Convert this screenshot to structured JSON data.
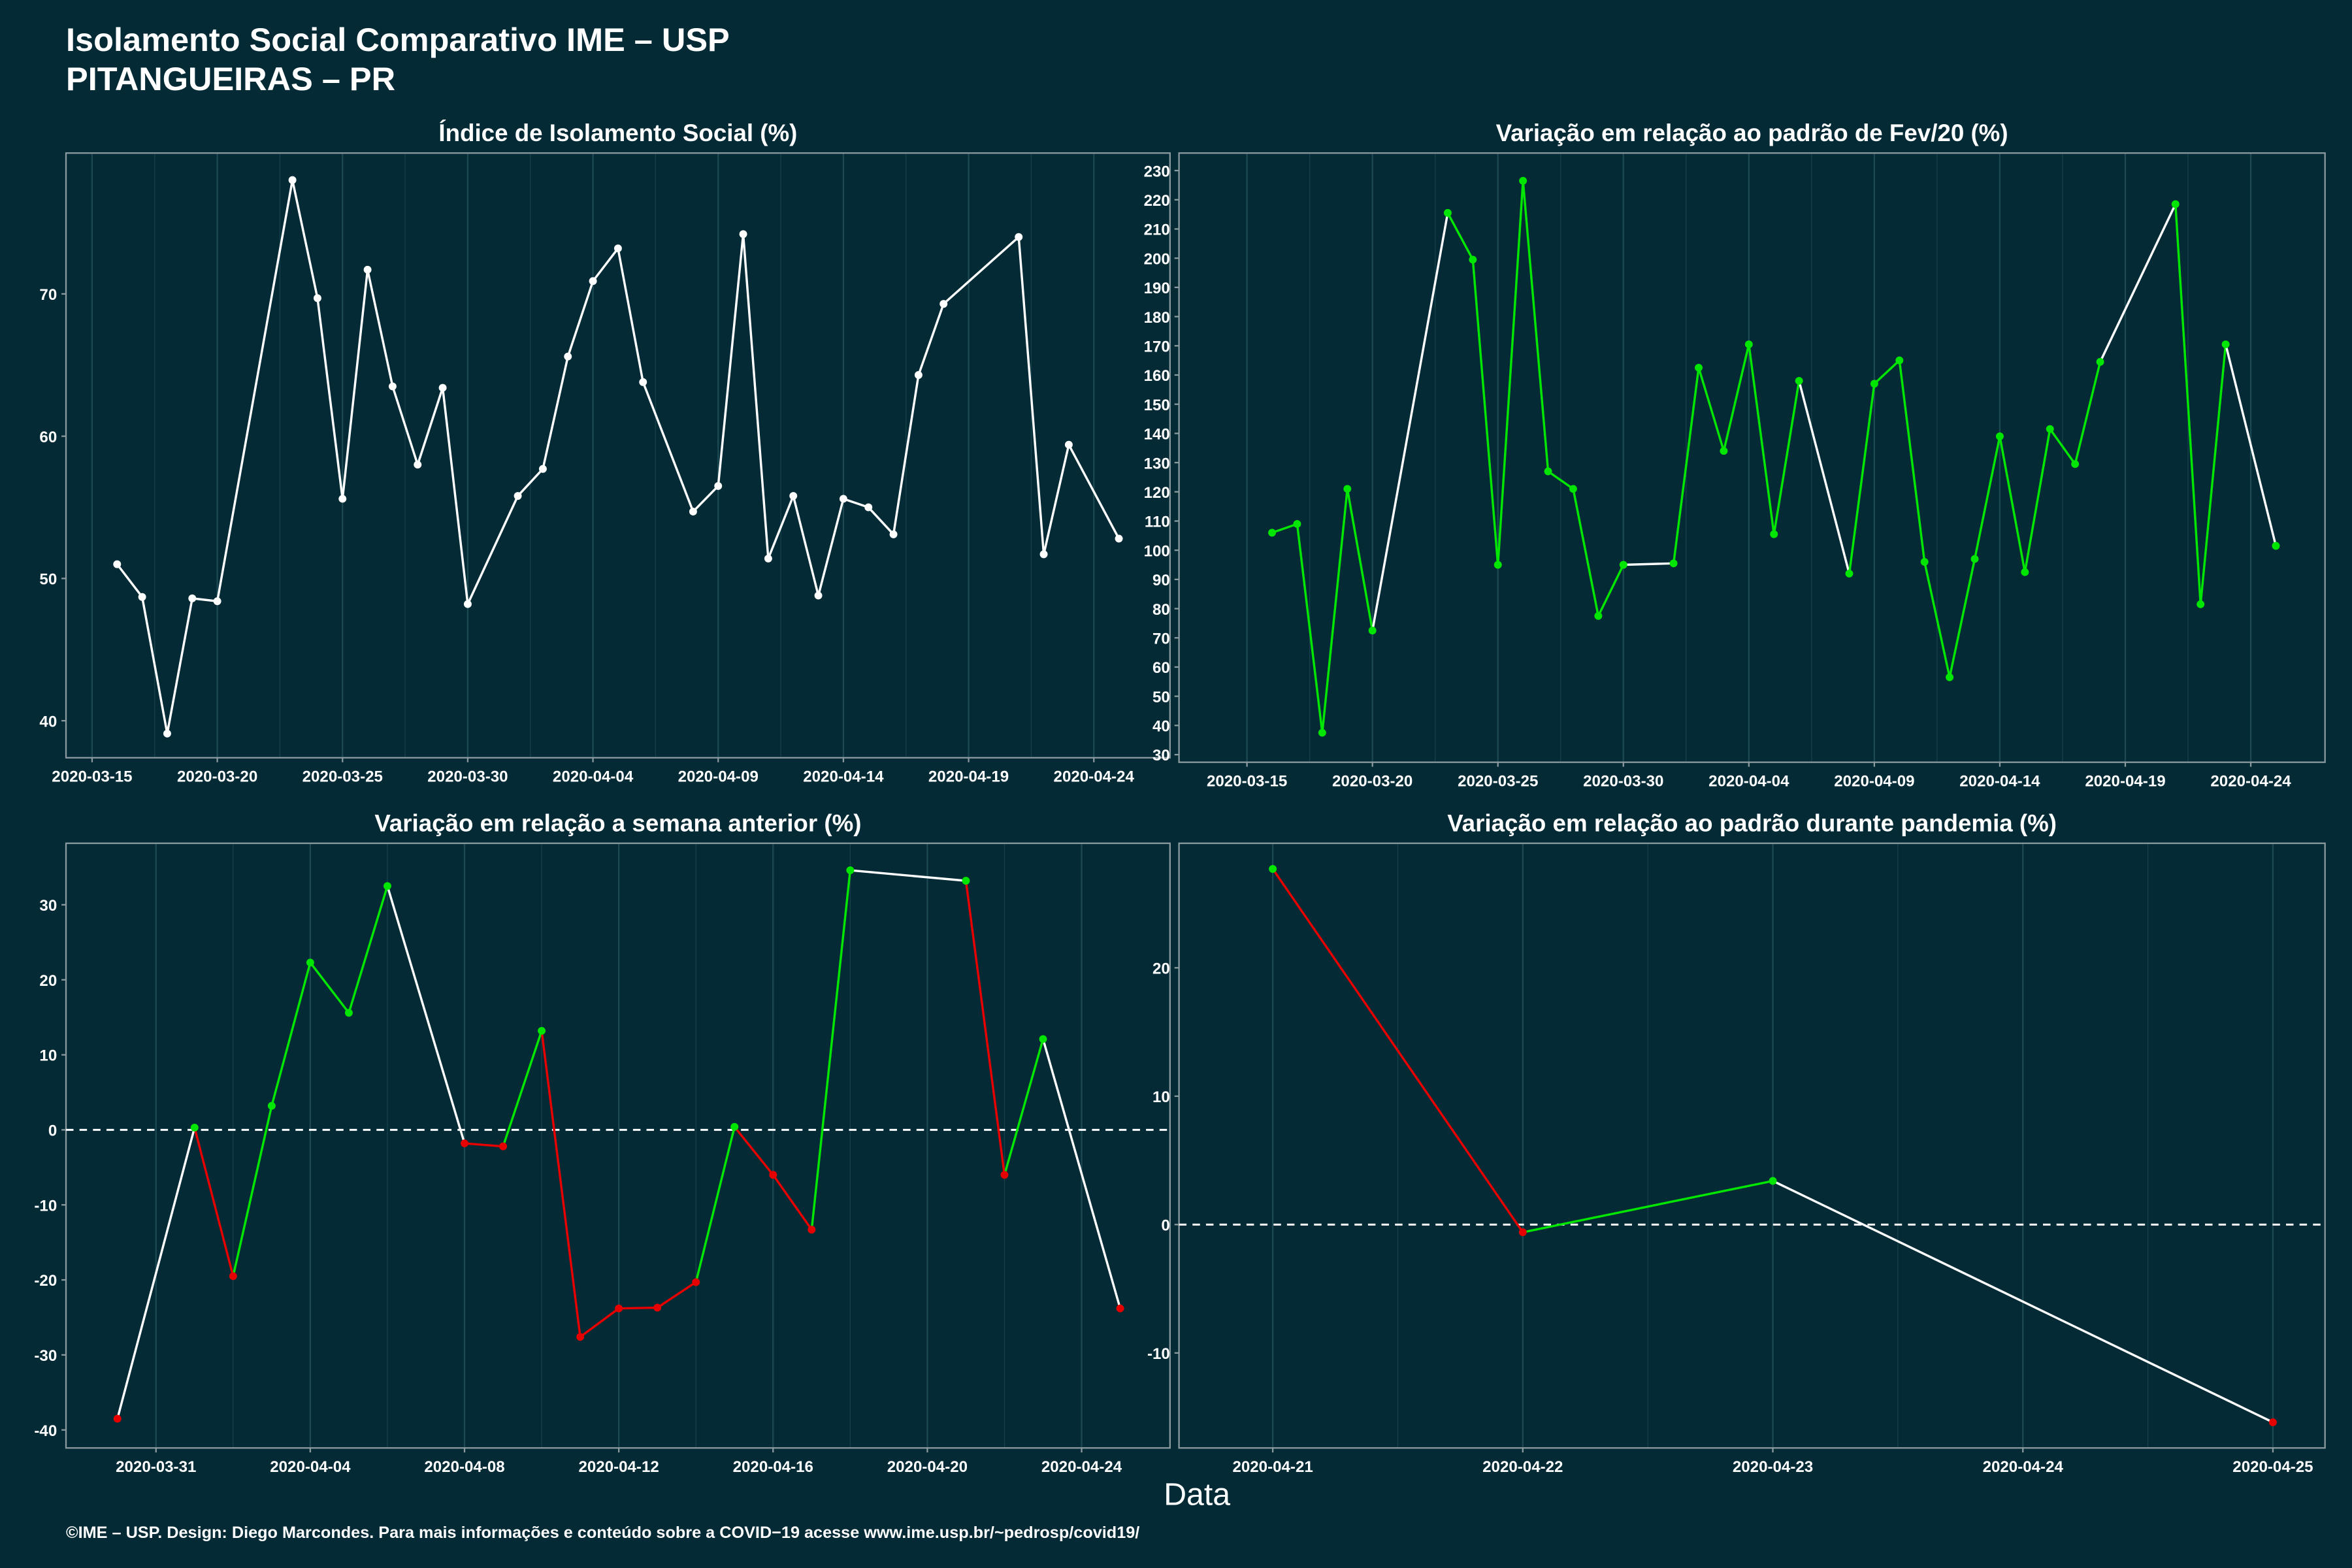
{
  "header": {
    "title": "Isolamento Social Comparativo IME – USP",
    "subtitle": "PITANGUEIRAS – PR"
  },
  "x_label": "Data",
  "footer": "©IME – USP. Design: Diego Marcondes. Para mais informações e conteúdo sobre a COVID−19 acesse www.ime.usp.br/~pedrosp/covid19/",
  "chart_data": [
    {
      "type": "line",
      "title": "Índice de Isolamento Social (%)",
      "x": [
        "2020-03-16",
        "2020-03-17",
        "2020-03-18",
        "2020-03-19",
        "2020-03-20",
        "2020-03-23",
        "2020-03-24",
        "2020-03-25",
        "2020-03-26",
        "2020-03-27",
        "2020-03-28",
        "2020-03-29",
        "2020-03-30",
        "2020-04-01",
        "2020-04-02",
        "2020-04-03",
        "2020-04-04",
        "2020-04-05",
        "2020-04-06",
        "2020-04-08",
        "2020-04-09",
        "2020-04-10",
        "2020-04-11",
        "2020-04-12",
        "2020-04-13",
        "2020-04-14",
        "2020-04-15",
        "2020-04-16",
        "2020-04-17",
        "2020-04-18",
        "2020-04-21",
        "2020-04-22",
        "2020-04-23",
        "2020-04-25"
      ],
      "series": [
        {
          "values": [
            51,
            48.7,
            39.1,
            48.6,
            48.4,
            78,
            69.7,
            55.6,
            71.7,
            63.5,
            58,
            63.4,
            48.2,
            55.8,
            57.7,
            65.6,
            70.9,
            73.2,
            63.8,
            54.7,
            56.5,
            74.2,
            51.4,
            55.8,
            48.8,
            55.6,
            55,
            53.1,
            64.3,
            69.3,
            74,
            51.7,
            59.4,
            52.8
          ],
          "color": "#ffffff"
        }
      ],
      "xlim": [
        "2020-03-13T23:00",
        "2020-04-27T01:00"
      ],
      "xticks": [
        "2020-03-15",
        "2020-03-20",
        "2020-03-25",
        "2020-03-30",
        "2020-04-04",
        "2020-04-09",
        "2020-04-14",
        "2020-04-19",
        "2020-04-24"
      ],
      "ylim": [
        37.4,
        79.9
      ],
      "yticks": [
        40,
        50,
        60,
        70
      ]
    },
    {
      "type": "line",
      "title": "Variação em relação ao padrão de Fev/20 (%)",
      "x": [
        "2020-03-16",
        "2020-03-17",
        "2020-03-18",
        "2020-03-19",
        "2020-03-20",
        "2020-03-23",
        "2020-03-24",
        "2020-03-25",
        "2020-03-26",
        "2020-03-27",
        "2020-03-28",
        "2020-03-29",
        "2020-03-30",
        "2020-04-01",
        "2020-04-02",
        "2020-04-03",
        "2020-04-04",
        "2020-04-05",
        "2020-04-06",
        "2020-04-08",
        "2020-04-09",
        "2020-04-10",
        "2020-04-11",
        "2020-04-12",
        "2020-04-13",
        "2020-04-14",
        "2020-04-15",
        "2020-04-16",
        "2020-04-17",
        "2020-04-18",
        "2020-04-21",
        "2020-04-22",
        "2020-04-23",
        "2020-04-25"
      ],
      "series": [
        {
          "values": [
            106,
            109,
            37.5,
            121,
            72.5,
            215.5,
            199.5,
            95,
            226.5,
            127,
            121,
            77.5,
            95,
            95.5,
            162.5,
            134,
            170.5,
            105.5,
            158,
            92,
            157,
            165,
            96,
            56.5,
            97,
            139,
            92.5,
            141.5,
            129.5,
            164.5,
            218.5,
            81.5,
            170.5,
            101.5
          ],
          "color_positive": "#00e600",
          "color_negative": "#e60000",
          "color_gap": "#ffffff"
        }
      ],
      "xlim": [
        "2020-03-12T07:00",
        "2020-04-26T23:00"
      ],
      "xticks": [
        "2020-03-15",
        "2020-03-20",
        "2020-03-25",
        "2020-03-30",
        "2020-04-04",
        "2020-04-09",
        "2020-04-14",
        "2020-04-19",
        "2020-04-24"
      ],
      "ylim": [
        27.4,
        236
      ],
      "yticks": [
        30,
        40,
        50,
        60,
        70,
        80,
        90,
        100,
        110,
        120,
        130,
        140,
        150,
        160,
        170,
        180,
        190,
        200,
        210,
        220,
        230
      ]
    },
    {
      "type": "line",
      "title": "Variação em relação a semana anterior (%)",
      "x": [
        "2020-03-30",
        "2020-04-01",
        "2020-04-02",
        "2020-04-03",
        "2020-04-04",
        "2020-04-05",
        "2020-04-06",
        "2020-04-08",
        "2020-04-09",
        "2020-04-10",
        "2020-04-11",
        "2020-04-12",
        "2020-04-13",
        "2020-04-14",
        "2020-04-15",
        "2020-04-16",
        "2020-04-17",
        "2020-04-18",
        "2020-04-21",
        "2020-04-22",
        "2020-04-23",
        "2020-04-25"
      ],
      "series": [
        {
          "values": [
            -38.5,
            0.3,
            -19.5,
            3.2,
            22.3,
            15.6,
            32.5,
            -1.8,
            -2.2,
            13.2,
            -27.6,
            -23.8,
            -23.7,
            -20.3,
            0.4,
            -6,
            -13.3,
            34.6,
            33.2,
            -6,
            12.1,
            -23.8
          ],
          "color_positive": "#00e600",
          "color_negative": "#e60000",
          "color_gap": "#ffffff"
        }
      ],
      "reference_line": 0,
      "xlim": [
        "2020-03-28T16:00",
        "2020-04-26T07:00"
      ],
      "xticks": [
        "2020-03-31",
        "2020-04-04",
        "2020-04-08",
        "2020-04-12",
        "2020-04-16",
        "2020-04-20",
        "2020-04-24"
      ],
      "ylim": [
        -42.4,
        38.2
      ],
      "yticks": [
        -40,
        -30,
        -20,
        -10,
        0,
        10,
        20,
        30
      ]
    },
    {
      "type": "line",
      "title": "Variação em relação ao padrão durante pandemia (%)",
      "x": [
        "2020-04-21",
        "2020-04-22",
        "2020-04-23",
        "2020-04-25"
      ],
      "series": [
        {
          "values": [
            27.7,
            -0.6,
            3.4,
            -15.4
          ],
          "color_positive": "#00e600",
          "color_negative": "#e60000",
          "color_gap": "#ffffff"
        }
      ],
      "reference_line": 0,
      "xlim": [
        "2020-04-20T15:00",
        "2020-04-25T05:00"
      ],
      "xticks": [
        "2020-04-21",
        "2020-04-22",
        "2020-04-23",
        "2020-04-24",
        "2020-04-25"
      ],
      "ylim": [
        -17.4,
        29.7
      ],
      "yticks": [
        -10,
        0,
        10,
        20
      ]
    }
  ]
}
